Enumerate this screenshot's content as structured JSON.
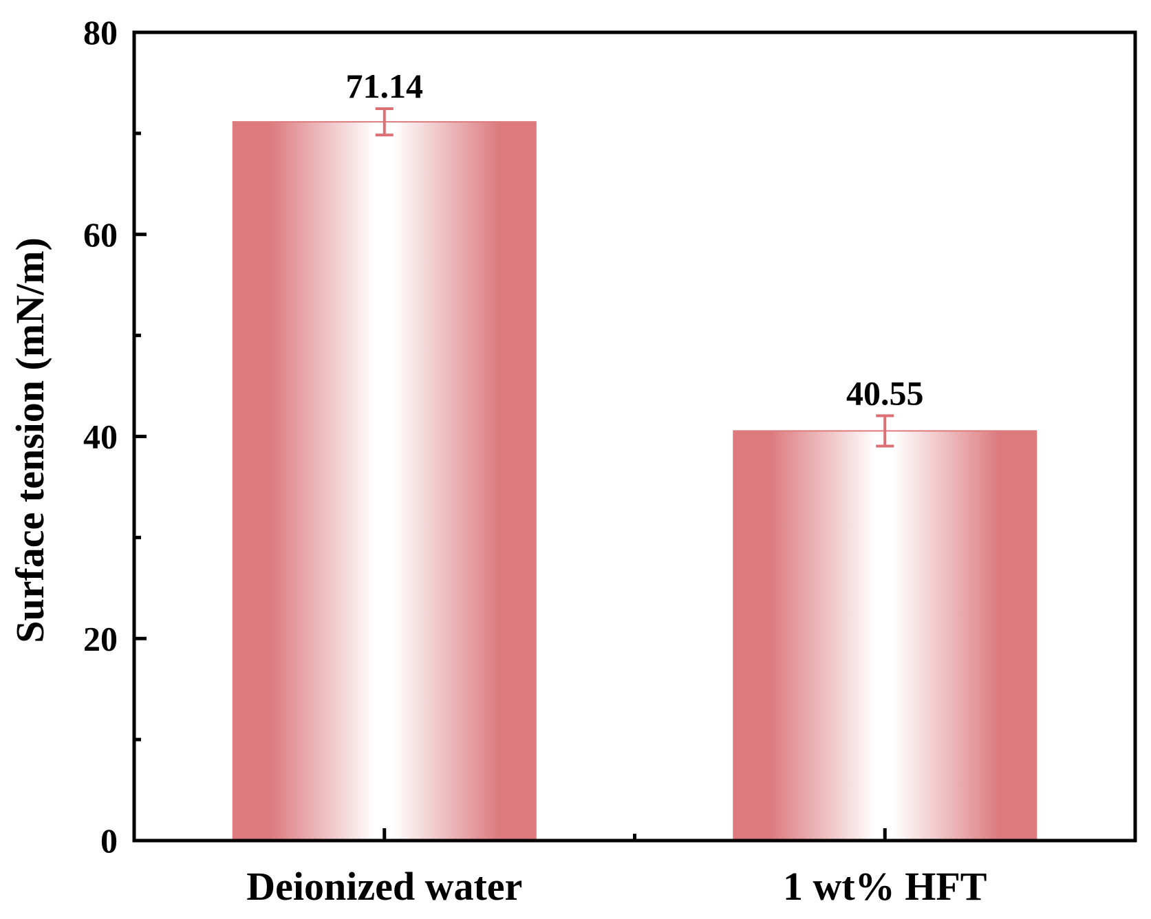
{
  "chart_data": {
    "type": "bar",
    "title": "",
    "xlabel": "",
    "ylabel": "Surface tension (mN/m)",
    "categories": [
      "Deionized water",
      "1 wt% HFT"
    ],
    "values": [
      71.14,
      40.55
    ],
    "value_labels": [
      "71.14",
      "40.55"
    ],
    "error": [
      1.3,
      1.5
    ],
    "ylim": [
      0,
      80
    ],
    "yticks": [
      0,
      20,
      40,
      60,
      80
    ],
    "yticks_minor": [
      10,
      30,
      50,
      70
    ],
    "grid": false,
    "legend": "none",
    "bar_color": "#dc7a7e",
    "bar_highlight": "#ffffff",
    "error_color": "#dc6f74",
    "axis_color": "#000000"
  }
}
